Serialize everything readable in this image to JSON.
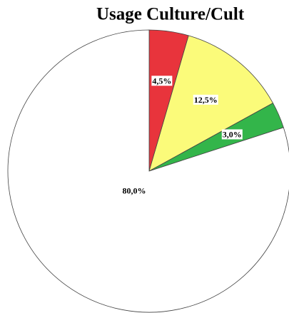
{
  "chart_data": {
    "type": "pie",
    "title": "Usage Culture/Cult",
    "values": [
      4.5,
      12.5,
      3.0,
      80.0
    ],
    "value_labels": [
      "4,5%",
      "12,5%",
      "3,0%",
      "80,0%"
    ],
    "colors": [
      "#e8343c",
      "#fbfb7a",
      "#33b54a",
      "#ffffff"
    ]
  }
}
